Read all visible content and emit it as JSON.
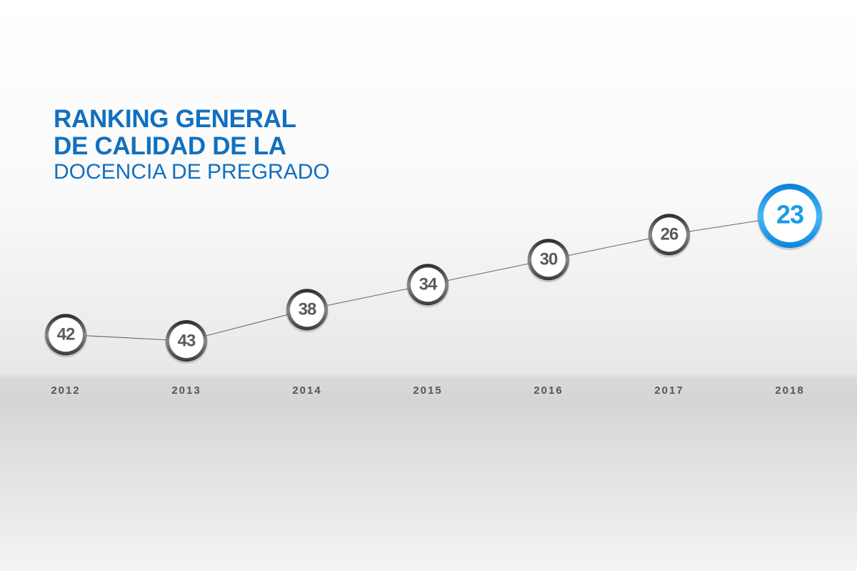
{
  "chart_data": {
    "type": "line",
    "title": "RANKING GENERAL DE CALIDAD DE LA",
    "subtitle": "DOCENCIA DE PREGRADO",
    "categories": [
      "2012",
      "2013",
      "2014",
      "2015",
      "2016",
      "2017",
      "2018"
    ],
    "values": [
      42,
      43,
      38,
      34,
      30,
      26,
      23
    ],
    "color": "#5a5a5a",
    "highlight_color": "#1a9be6",
    "title_color": "#1170bf"
  }
}
